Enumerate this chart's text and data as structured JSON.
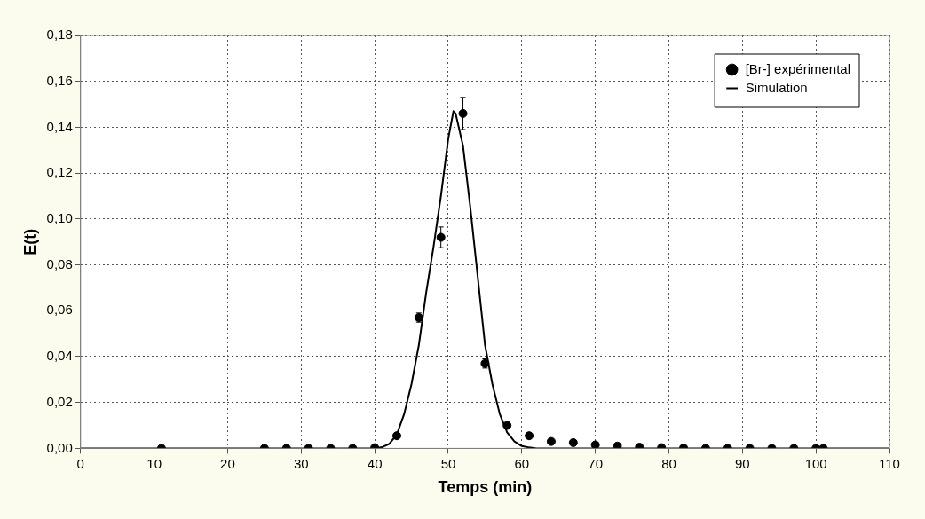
{
  "chart_data": {
    "type": "scatter",
    "xlabel": "Temps (min)",
    "ylabel": "E(t)",
    "xlim": [
      0,
      110
    ],
    "xticks": [
      0,
      10,
      20,
      30,
      40,
      50,
      60,
      70,
      80,
      90,
      100,
      110
    ],
    "ylim": [
      0,
      0.18
    ],
    "yticks": [
      {
        "value": 0,
        "label": "0,00"
      },
      {
        "value": 0.02,
        "label": "0,02"
      },
      {
        "value": 0.04,
        "label": "0,04"
      },
      {
        "value": 0.06,
        "label": "0,06"
      },
      {
        "value": 0.08,
        "label": "0,08"
      },
      {
        "value": 0.1,
        "label": "0,10"
      },
      {
        "value": 0.12,
        "label": "0,12"
      },
      {
        "value": 0.14,
        "label": "0,14"
      },
      {
        "value": 0.16,
        "label": "0,16"
      },
      {
        "value": 0.18,
        "label": "0,18"
      }
    ],
    "grid": true,
    "legend": "top right",
    "series": [
      {
        "name": "[Br-] expérimental",
        "type": "scatter",
        "marker": "circle",
        "color": "#000000",
        "x": [
          11,
          25,
          28,
          31,
          34,
          37,
          40,
          43,
          46,
          49,
          52,
          55,
          58,
          61,
          64,
          67,
          70,
          73,
          76,
          79,
          82,
          85,
          88,
          91,
          94,
          97,
          100,
          101
        ],
        "values": [
          0,
          0,
          0,
          0,
          0,
          0,
          0.0003,
          0.0055,
          0.057,
          0.092,
          0.146,
          0.037,
          0.01,
          0.0055,
          0.003,
          0.0025,
          0.0015,
          0.001,
          0.0005,
          0.0003,
          0.0002,
          0,
          0,
          0,
          0,
          0,
          0,
          0
        ],
        "errors": [
          null,
          null,
          null,
          null,
          null,
          null,
          null,
          null,
          0.002,
          0.0045,
          0.007,
          0.002,
          null,
          null,
          null,
          null,
          null,
          null,
          null,
          null,
          null,
          null,
          null,
          null,
          null,
          null,
          null,
          null
        ]
      },
      {
        "name": "Simulation",
        "type": "line",
        "marker": "none",
        "line_style": "solid",
        "color": "#000000",
        "x": [
          0,
          40,
          41,
          42,
          43,
          44,
          45,
          46,
          47,
          48,
          49,
          50,
          50.7,
          51,
          52,
          53,
          54,
          55,
          56,
          57,
          58,
          59,
          60,
          61,
          62,
          110
        ],
        "values": [
          0,
          0,
          0.0005,
          0.002,
          0.006,
          0.015,
          0.028,
          0.045,
          0.068,
          0.088,
          0.11,
          0.135,
          0.147,
          0.146,
          0.132,
          0.105,
          0.075,
          0.045,
          0.028,
          0.015,
          0.007,
          0.003,
          0.001,
          0.0004,
          0,
          0
        ]
      }
    ]
  }
}
